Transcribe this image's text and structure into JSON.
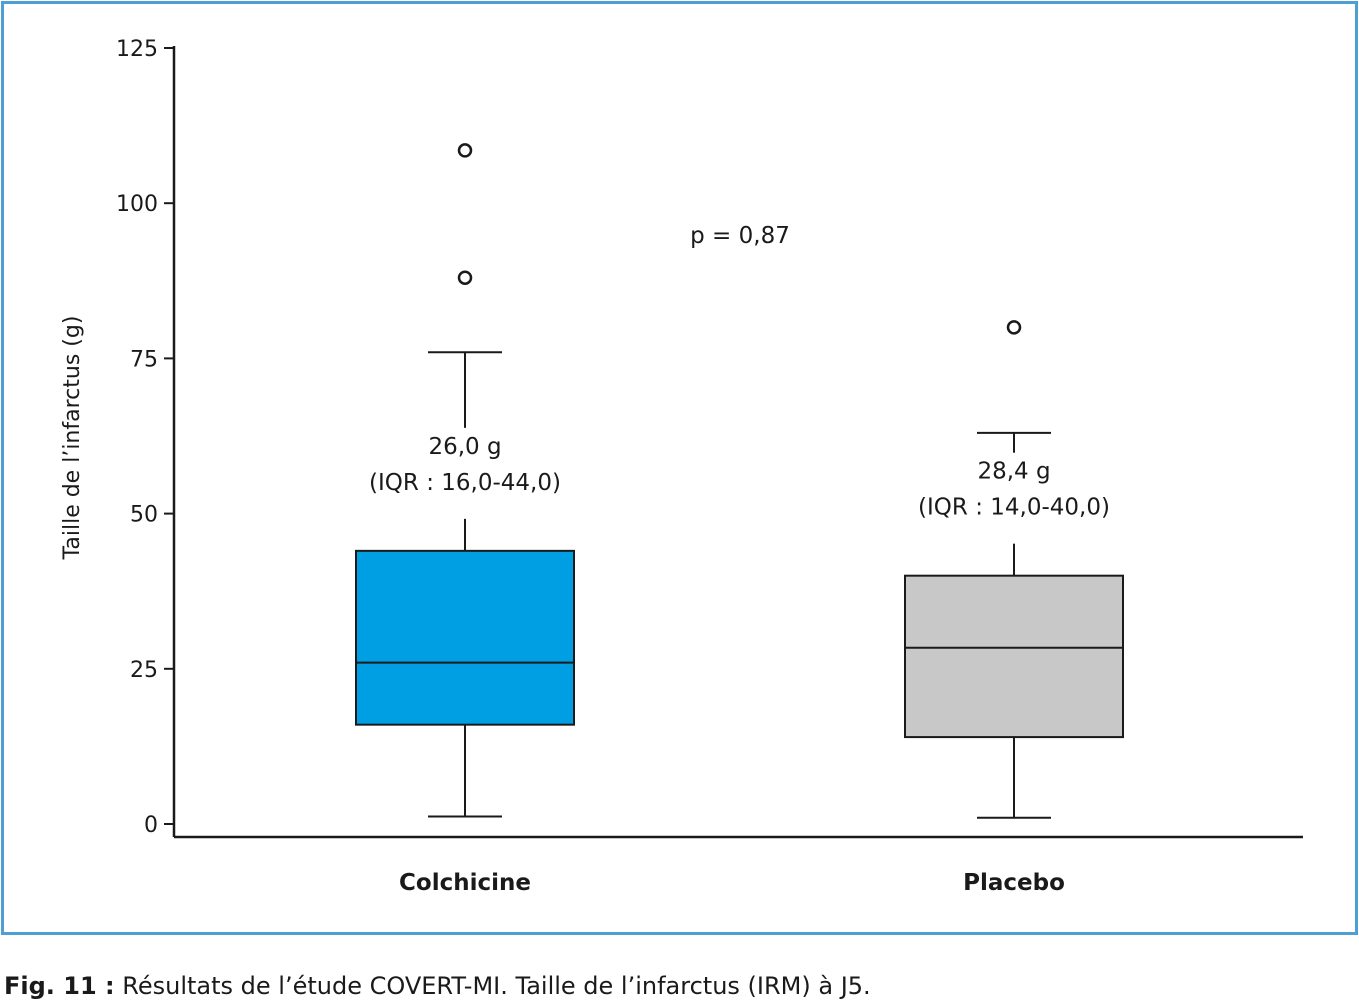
{
  "caption": {
    "label": "Fig. 11 :",
    "text": "Résultats de l’étude COVERT-MI. Taille de l’infarctus (IRM) à J5."
  },
  "colors": {
    "frame": "#4f9fd4",
    "colchicine_box": "#009fe3",
    "placebo_box": "#c8c8c8",
    "stroke": "#1a1a1a"
  },
  "chart_data": {
    "type": "box",
    "ylabel": "Taille de l’infarctus (g)",
    "ylim": [
      0,
      125
    ],
    "yticks": [
      0,
      25,
      50,
      75,
      100,
      125
    ],
    "grid": false,
    "annotation": "p = 0,87",
    "series": [
      {
        "name": "Colchicine",
        "whisker_low": 1.2,
        "q1": 16.0,
        "median": 26.0,
        "q3": 44.0,
        "whisker_high": 76,
        "outliers": [
          108.5,
          88
        ],
        "label_line1": "26,0 g",
        "label_line2": "(IQR : 16,0-44,0)",
        "color": "#009fe3"
      },
      {
        "name": "Placebo",
        "whisker_low": 1.0,
        "q1": 14.0,
        "median": 28.4,
        "q3": 40.0,
        "whisker_high": 63,
        "outliers": [
          80
        ],
        "label_line1": "28,4 g",
        "label_line2": "(IQR : 14,0-40,0)",
        "color": "#c8c8c8"
      }
    ]
  }
}
